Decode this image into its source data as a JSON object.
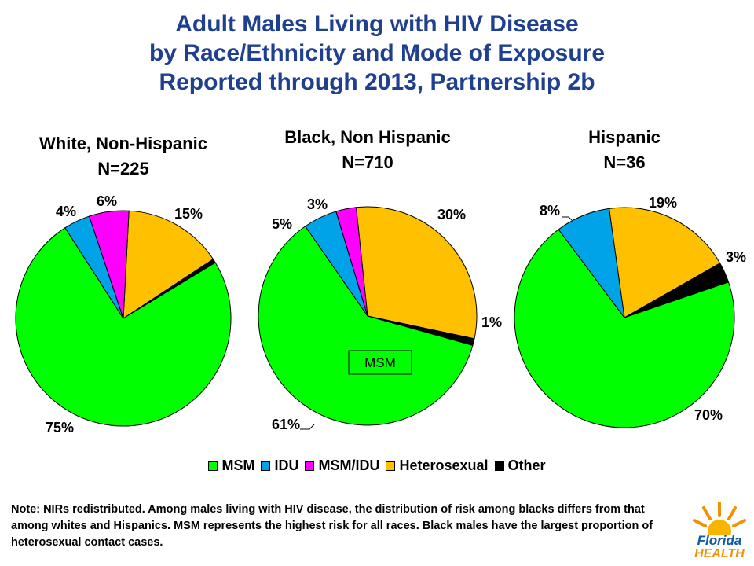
{
  "title_lines": [
    "Adult Males Living with HIV Disease",
    "by Race/Ethnicity and Mode of Exposure",
    "Reported through 2013, Partnership 2b"
  ],
  "colors": {
    "title": "#1f3f8f",
    "MSM": "#00ff00",
    "IDU": "#00a3e8",
    "MSM/IDU": "#ff00ff",
    "Heterosexual": "#ffc000",
    "Other": "#000000"
  },
  "legend": [
    "MSM",
    "IDU",
    "MSM/IDU",
    "Heterosexual",
    "Other"
  ],
  "chart_data": [
    {
      "type": "pie",
      "title": "White, Non-Hispanic",
      "subtitle": "N=225",
      "categories": [
        "MSM",
        "IDU",
        "MSM/IDU",
        "Heterosexual",
        "Other"
      ],
      "values": [
        75,
        4,
        6,
        15,
        0.6
      ],
      "labels": [
        "75%",
        "4%",
        "6%",
        "15%",
        ""
      ]
    },
    {
      "type": "pie",
      "title": "Black, Non Hispanic",
      "subtitle": "N=710",
      "categories": [
        "MSM",
        "IDU",
        "MSM/IDU",
        "Heterosexual",
        "Other"
      ],
      "values": [
        61,
        5,
        3,
        30,
        1
      ],
      "labels": [
        "61%",
        "5%",
        "3%",
        "30%",
        "1%"
      ],
      "tooltip": "MSM"
    },
    {
      "type": "pie",
      "title": "Hispanic",
      "subtitle": "N=36",
      "categories": [
        "MSM",
        "IDU",
        "MSM/IDU",
        "Heterosexual",
        "Other"
      ],
      "values": [
        70,
        8,
        0,
        19,
        3
      ],
      "labels": [
        "70%",
        "8%",
        "",
        "19%",
        "3%"
      ]
    }
  ],
  "note": "Note: NIRs redistributed.  Among males living with HIV disease, the distribution of risk among blacks differs from that among whites and Hispanics.  MSM represents the highest risk for all races.  Black males have the largest proportion of heterosexual contact cases.",
  "logo": {
    "line1": "Florida",
    "line2": "HEALTH"
  }
}
